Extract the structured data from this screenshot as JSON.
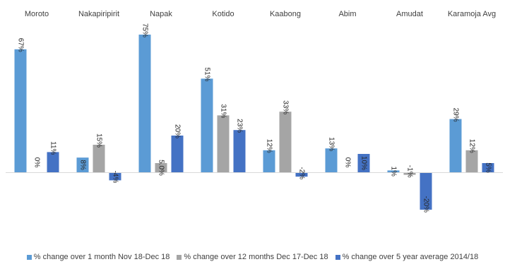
{
  "chart_data": {
    "type": "bar",
    "categories": [
      "Moroto",
      "Nakapiripirit",
      "Napak",
      "Kotido",
      "Kaabong",
      "Abim",
      "Amudat",
      "Karamoja Avg"
    ],
    "series": [
      {
        "name": "% change over 1 month Nov 18-Dec 18",
        "color": "#5B9BD5",
        "values": [
          67,
          8,
          75,
          51,
          12,
          13,
          1,
          29
        ],
        "labels": [
          "67%",
          "8%",
          "75%",
          "51%",
          "12%",
          "13%",
          "1%",
          "29%"
        ]
      },
      {
        "name": "% change over 12 months  Dec 17-Dec 18",
        "color": "#A5A5A5",
        "values": [
          0,
          15,
          5.0,
          31,
          33,
          0,
          -1,
          12
        ],
        "labels": [
          "0%",
          "15%",
          "5.0%",
          "31%",
          "33%",
          "0%",
          "-1%",
          "12%"
        ]
      },
      {
        "name": "% change over 5 year average 2014/18",
        "color": "#4472C4",
        "values": [
          11,
          -4,
          20,
          23,
          -2,
          10,
          -20,
          5
        ],
        "labels": [
          "11%",
          "-4%",
          "20%",
          "23%",
          "-2%",
          "10%",
          "-20%",
          "5%"
        ]
      }
    ],
    "legend_position": "bottom",
    "grid": false,
    "category_labels_position": "top"
  }
}
